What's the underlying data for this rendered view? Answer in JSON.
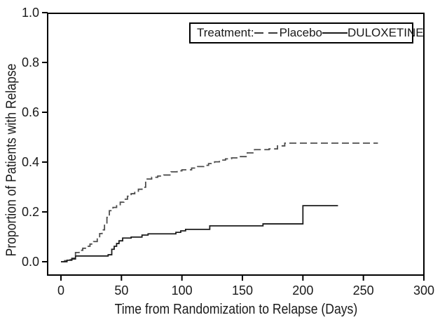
{
  "figure": {
    "background": "#ffffff",
    "frame_color": "#000000",
    "legend": {
      "prefix": "Treatment:",
      "items": [
        {
          "label": "Placebo",
          "line_style": "dashed"
        },
        {
          "label": "DULOXETINE",
          "line_style": "solid"
        }
      ]
    }
  },
  "chart_data": {
    "type": "line",
    "subtype": "step-function (Kaplan-Meier style cumulative relapse curves)",
    "title": "",
    "xlabel": "Time from Randomization to Relapse (Days)",
    "ylabel": "Proportion of Patients with Relapse",
    "xlim": [
      0,
      300
    ],
    "ylim": [
      0.0,
      1.0
    ],
    "x_tick_labels": [
      "0",
      "50",
      "100",
      "150",
      "200",
      "250",
      "300"
    ],
    "y_tick_labels": [
      "0.0",
      "0.2",
      "0.4",
      "0.6",
      "0.8",
      "1.0"
    ],
    "grid": false,
    "legend_position": "top-right inside plot",
    "series": [
      {
        "name": "Placebo",
        "line_style": "dashed",
        "color": "#4d4d4d",
        "points": [
          [
            0,
            0
          ],
          [
            3,
            0.004
          ],
          [
            6,
            0.008
          ],
          [
            9,
            0.014
          ],
          [
            11,
            0.02
          ],
          [
            12,
            0.037
          ],
          [
            15,
            0.046
          ],
          [
            18,
            0.054
          ],
          [
            21,
            0.062
          ],
          [
            24,
            0.071
          ],
          [
            27,
            0.081
          ],
          [
            30,
            0.096
          ],
          [
            32,
            0.113
          ],
          [
            34,
            0.128
          ],
          [
            36,
            0.152
          ],
          [
            38,
            0.178
          ],
          [
            40,
            0.205
          ],
          [
            43,
            0.218
          ],
          [
            46,
            0.229
          ],
          [
            49,
            0.239
          ],
          [
            52,
            0.251
          ],
          [
            55,
            0.263
          ],
          [
            58,
            0.273
          ],
          [
            61,
            0.283
          ],
          [
            64,
            0.291
          ],
          [
            67,
            0.299
          ],
          [
            70,
            0.332
          ],
          [
            75,
            0.339
          ],
          [
            80,
            0.344
          ],
          [
            85,
            0.348
          ],
          [
            91,
            0.361
          ],
          [
            96,
            0.365
          ],
          [
            100,
            0.369
          ],
          [
            108,
            0.376
          ],
          [
            113,
            0.382
          ],
          [
            118,
            0.387
          ],
          [
            122,
            0.394
          ],
          [
            127,
            0.401
          ],
          [
            131,
            0.408
          ],
          [
            136,
            0.413
          ],
          [
            141,
            0.417
          ],
          [
            146,
            0.422
          ],
          [
            154,
            0.437
          ],
          [
            160,
            0.45
          ],
          [
            172,
            0.453
          ],
          [
            179,
            0.465
          ],
          [
            185,
            0.476
          ],
          [
            262,
            0.476
          ]
        ]
      },
      {
        "name": "DULOXETINE",
        "line_style": "solid",
        "color": "#1c1c1c",
        "points": [
          [
            0,
            0
          ],
          [
            5,
            0.006
          ],
          [
            9,
            0.011
          ],
          [
            12,
            0.023
          ],
          [
            39,
            0.028
          ],
          [
            42,
            0.05
          ],
          [
            44,
            0.062
          ],
          [
            46,
            0.073
          ],
          [
            48,
            0.084
          ],
          [
            51,
            0.095
          ],
          [
            58,
            0.099
          ],
          [
            67,
            0.107
          ],
          [
            72,
            0.112
          ],
          [
            95,
            0.118
          ],
          [
            99,
            0.124
          ],
          [
            103,
            0.13
          ],
          [
            123,
            0.144
          ],
          [
            167,
            0.152
          ],
          [
            200,
            0.225
          ],
          [
            229,
            0.225
          ]
        ]
      }
    ]
  }
}
